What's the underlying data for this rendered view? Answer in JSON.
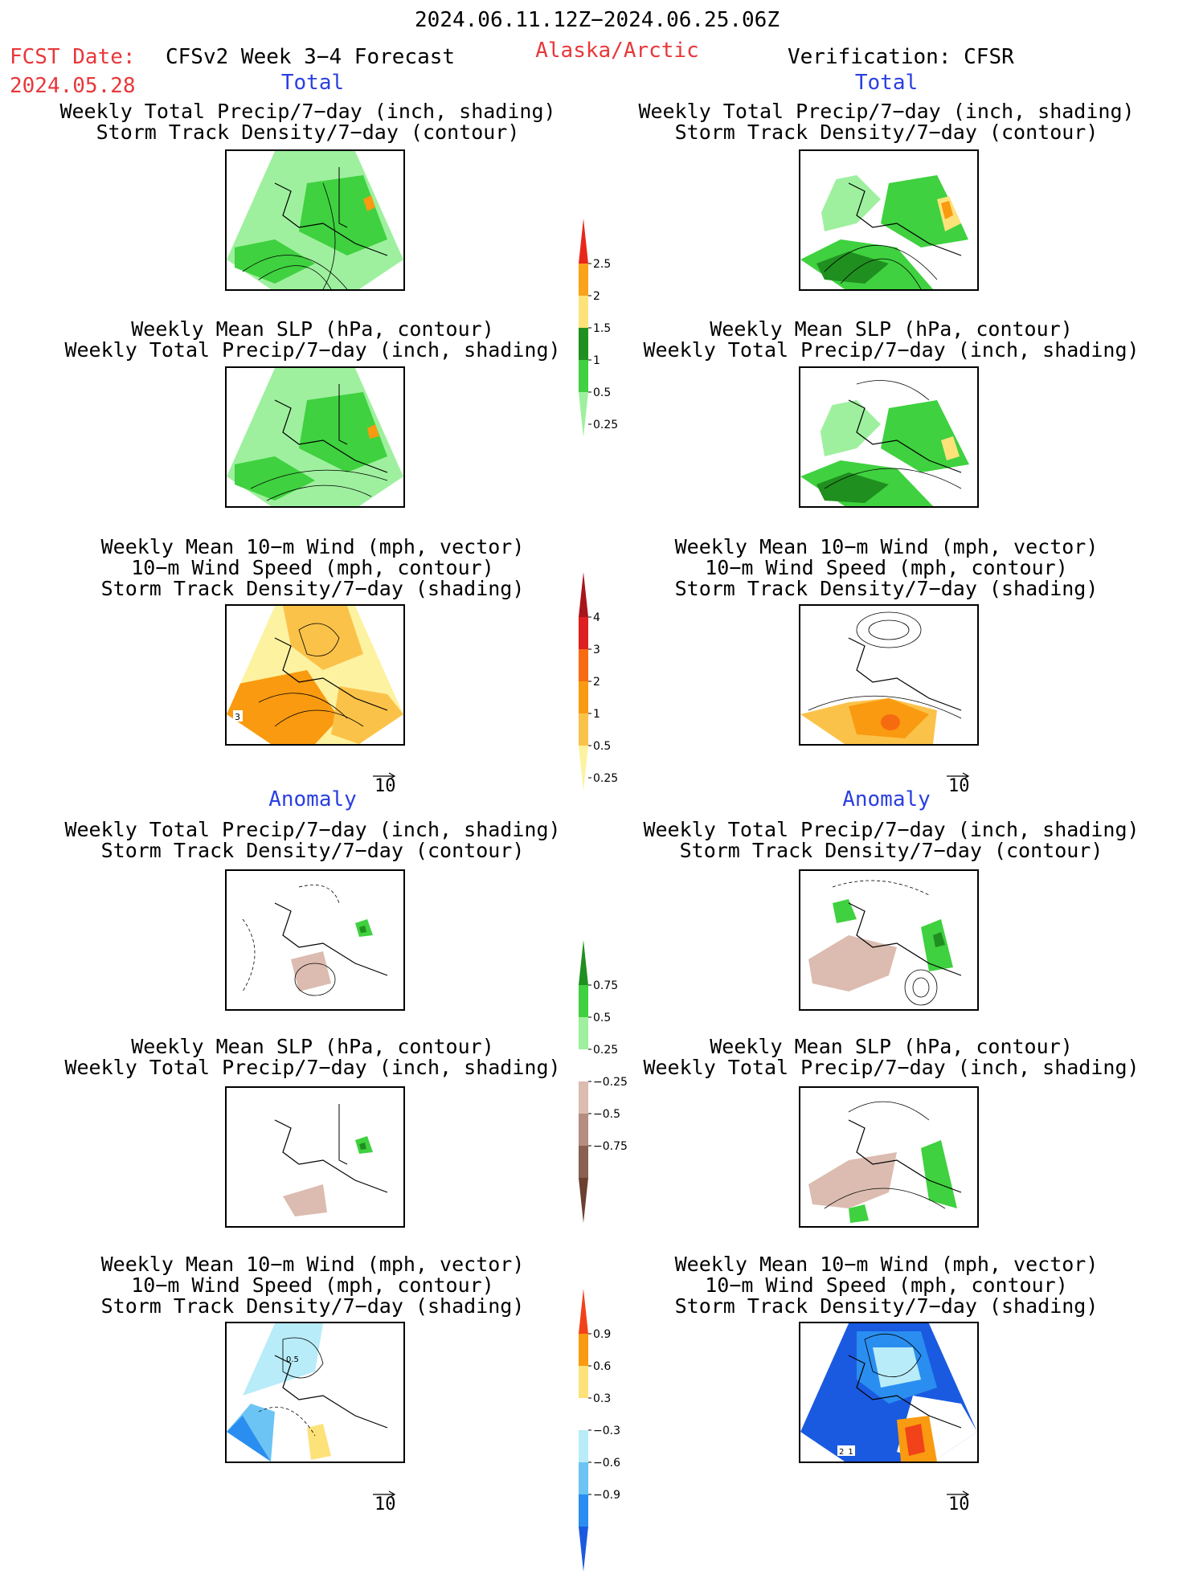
{
  "header": {
    "valid_period": "2024.06.11.12Z−2024.06.25.06Z",
    "fcst_date_label": "FCST Date:",
    "fcst_date": "2024.05.28",
    "model_label": "CFSv2 Week 3−4 Forecast",
    "region": "Alaska/Arctic",
    "verification": "Verification: CFSR"
  },
  "sections": {
    "total": "Total",
    "anomaly": "Anomaly"
  },
  "titles": {
    "precip_storm": [
      "Weekly Total Precip/7−day (inch, shading)",
      "Storm Track Density/7−day (contour)"
    ],
    "slp_precip": [
      "Weekly Mean SLP (hPa, contour)",
      "Weekly Total Precip/7−day (inch, shading)"
    ],
    "wind_storm": [
      "Weekly Mean 10−m Wind (mph, vector)",
      "10−m Wind Speed (mph, contour)",
      "Storm Track Density/7−day (shading)"
    ]
  },
  "vector_ref": "10",
  "colorbars": {
    "precip_total": {
      "labels": [
        "2.5",
        "2",
        "1.5",
        "1",
        "0.5",
        "0.25"
      ],
      "colors": [
        "#e8271b",
        "#f9a21a",
        "#fde27a",
        "#1f8f1f",
        "#3fd13f",
        "#9ef09e"
      ]
    },
    "storm_total": {
      "labels": [
        "4",
        "3",
        "2",
        "1",
        "0.5",
        "0.25"
      ],
      "colors": [
        "#a8151b",
        "#e02020",
        "#f76b10",
        "#f99a10",
        "#fbc24a",
        "#fdf2a0"
      ]
    },
    "precip_anom": {
      "labels": [
        "0.75",
        "0.5",
        "0.25",
        "−0.25",
        "−0.5",
        "−0.75"
      ],
      "colors": [
        "#1f8f1f",
        "#3fd13f",
        "#9ef09e",
        "#ffffff",
        "#dcbcb0",
        "#b58d80",
        "#8a6050",
        "#6b4030"
      ]
    },
    "storm_anom": {
      "labels": [
        "0.9",
        "0.6",
        "0.3",
        "−0.3",
        "−0.6",
        "−0.9"
      ],
      "colors": [
        "#f2421a",
        "#f99a10",
        "#fde27a",
        "#ffffff",
        "#b8ecf8",
        "#6cc4f4",
        "#2a8ef0",
        "#1a5ae0"
      ]
    }
  },
  "contour_labels": {
    "cfs_total_storm": "3",
    "cfs_anom_storm": "0.5",
    "cfsr_anom_storm": "2 1"
  },
  "map_colors": {
    "light_green": "#9ef09e",
    "green": "#3fd13f",
    "dark_green": "#1f8f1f",
    "yellow": "#fde27a",
    "orange": "#f99a10",
    "tan": "#dcbcb0",
    "light_blue": "#b8ecf8",
    "blue": "#2a8ef0",
    "dark_blue": "#1a5ae0"
  }
}
